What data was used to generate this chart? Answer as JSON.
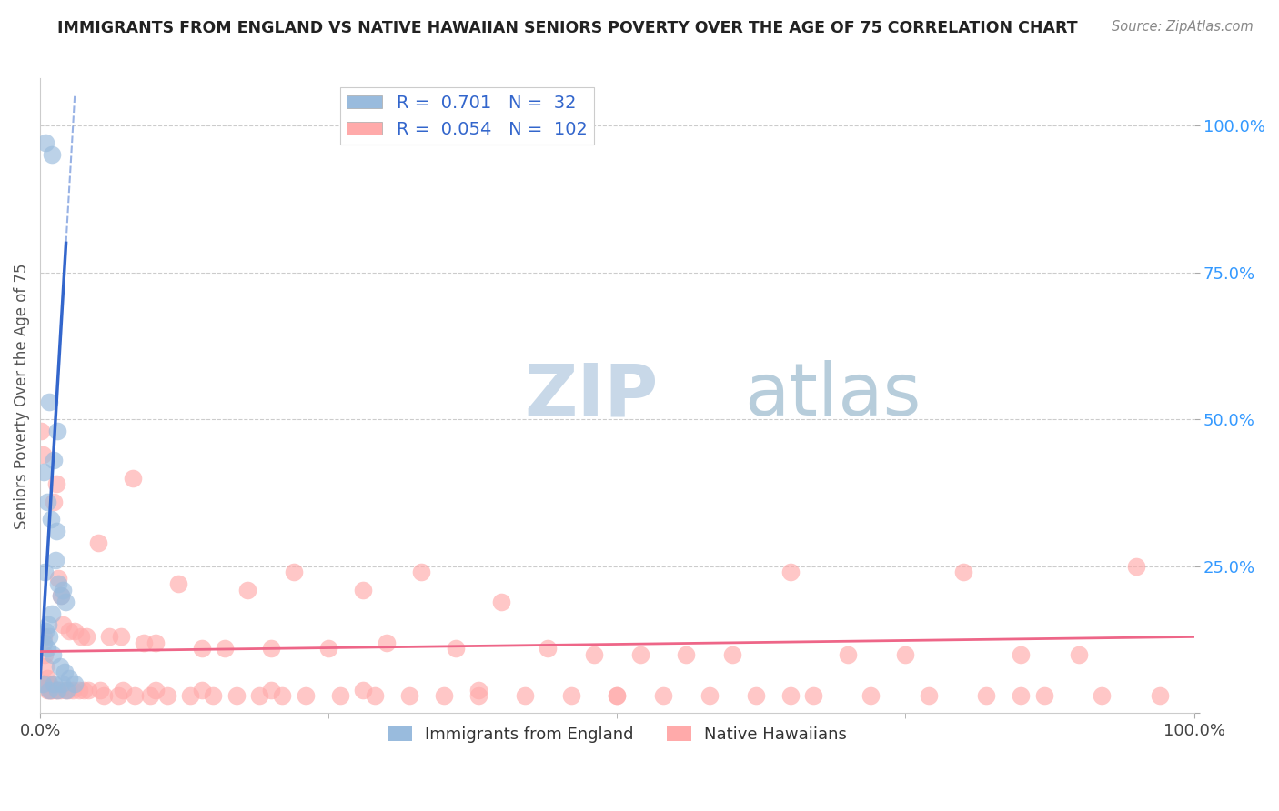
{
  "title": "IMMIGRANTS FROM ENGLAND VS NATIVE HAWAIIAN SENIORS POVERTY OVER THE AGE OF 75 CORRELATION CHART",
  "source": "Source: ZipAtlas.com",
  "ylabel": "Seniors Poverty Over the Age of 75",
  "xlim": [
    0.0,
    1.0
  ],
  "ylim": [
    0.0,
    1.08
  ],
  "blue_R": 0.701,
  "blue_N": 32,
  "pink_R": 0.054,
  "pink_N": 102,
  "blue_color": "#99BBDD",
  "pink_color": "#FFAAAA",
  "blue_line_color": "#3366CC",
  "pink_line_color": "#EE6688",
  "legend_label_blue": "Immigrants from England",
  "legend_label_pink": "Native Hawaiians",
  "blue_scatter_x": [
    0.005,
    0.01,
    0.008,
    0.015,
    0.012,
    0.003,
    0.006,
    0.009,
    0.014,
    0.018,
    0.022,
    0.01,
    0.007,
    0.005,
    0.013,
    0.004,
    0.016,
    0.02,
    0.008,
    0.003,
    0.006,
    0.011,
    0.017,
    0.021,
    0.025,
    0.03,
    0.002,
    0.008,
    0.012,
    0.019,
    0.023,
    0.015
  ],
  "blue_scatter_y": [
    0.97,
    0.95,
    0.53,
    0.48,
    0.43,
    0.41,
    0.36,
    0.33,
    0.31,
    0.2,
    0.19,
    0.17,
    0.15,
    0.14,
    0.26,
    0.24,
    0.22,
    0.21,
    0.13,
    0.12,
    0.11,
    0.1,
    0.08,
    0.07,
    0.06,
    0.05,
    0.05,
    0.04,
    0.05,
    0.05,
    0.04,
    0.04
  ],
  "pink_scatter_x": [
    0.001,
    0.002,
    0.003,
    0.004,
    0.005,
    0.006,
    0.007,
    0.008,
    0.009,
    0.01,
    0.012,
    0.014,
    0.016,
    0.018,
    0.02,
    0.025,
    0.03,
    0.035,
    0.04,
    0.05,
    0.06,
    0.07,
    0.08,
    0.09,
    0.1,
    0.12,
    0.14,
    0.16,
    0.18,
    0.2,
    0.22,
    0.25,
    0.28,
    0.3,
    0.33,
    0.36,
    0.4,
    0.44,
    0.48,
    0.52,
    0.56,
    0.6,
    0.65,
    0.7,
    0.75,
    0.8,
    0.85,
    0.9,
    0.95,
    0.003,
    0.006,
    0.009,
    0.013,
    0.017,
    0.022,
    0.028,
    0.034,
    0.042,
    0.055,
    0.068,
    0.082,
    0.095,
    0.11,
    0.13,
    0.15,
    0.17,
    0.19,
    0.21,
    0.23,
    0.26,
    0.29,
    0.32,
    0.35,
    0.38,
    0.42,
    0.46,
    0.5,
    0.54,
    0.58,
    0.62,
    0.67,
    0.72,
    0.77,
    0.82,
    0.87,
    0.92,
    0.97,
    0.004,
    0.008,
    0.015,
    0.024,
    0.038,
    0.052,
    0.072,
    0.1,
    0.14,
    0.2,
    0.28,
    0.38,
    0.5,
    0.65,
    0.85
  ],
  "pink_scatter_y": [
    0.48,
    0.44,
    0.13,
    0.1,
    0.08,
    0.06,
    0.05,
    0.05,
    0.04,
    0.04,
    0.36,
    0.39,
    0.23,
    0.2,
    0.15,
    0.14,
    0.14,
    0.13,
    0.13,
    0.29,
    0.13,
    0.13,
    0.4,
    0.12,
    0.12,
    0.22,
    0.11,
    0.11,
    0.21,
    0.11,
    0.24,
    0.11,
    0.21,
    0.12,
    0.24,
    0.11,
    0.19,
    0.11,
    0.1,
    0.1,
    0.1,
    0.1,
    0.24,
    0.1,
    0.1,
    0.24,
    0.1,
    0.1,
    0.25,
    0.05,
    0.04,
    0.04,
    0.04,
    0.04,
    0.04,
    0.04,
    0.04,
    0.04,
    0.03,
    0.03,
    0.03,
    0.03,
    0.03,
    0.03,
    0.03,
    0.03,
    0.03,
    0.03,
    0.03,
    0.03,
    0.03,
    0.03,
    0.03,
    0.03,
    0.03,
    0.03,
    0.03,
    0.03,
    0.03,
    0.03,
    0.03,
    0.03,
    0.03,
    0.03,
    0.03,
    0.03,
    0.03,
    0.05,
    0.04,
    0.04,
    0.04,
    0.04,
    0.04,
    0.04,
    0.04,
    0.04,
    0.04,
    0.04,
    0.04,
    0.03,
    0.03,
    0.03
  ]
}
